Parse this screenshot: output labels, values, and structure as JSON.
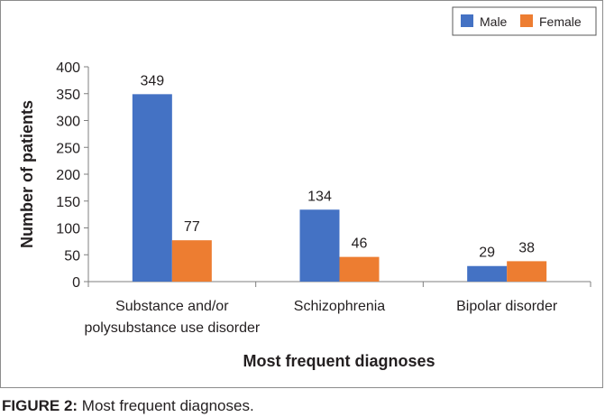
{
  "chart_data": {
    "type": "bar",
    "title": "",
    "xlabel": "Most frequent diagnoses",
    "ylabel": "Number of patients",
    "ylim": [
      0,
      400
    ],
    "yticks": [
      0,
      50,
      100,
      150,
      200,
      250,
      300,
      350,
      400
    ],
    "categories": [
      [
        "Substance and/or",
        "polysubstance use disorder"
      ],
      [
        "Schizophrenia"
      ],
      [
        "Bipolar disorder"
      ]
    ],
    "series": [
      {
        "name": "Male",
        "color": "#4472c4",
        "values": [
          349,
          134,
          29
        ]
      },
      {
        "name": "Female",
        "color": "#ed7d31",
        "values": [
          77,
          46,
          38
        ]
      }
    ],
    "legend_position": "top-right",
    "grid": false
  },
  "caption": {
    "label": "FIGURE 2:",
    "text": " Most frequent diagnoses."
  }
}
